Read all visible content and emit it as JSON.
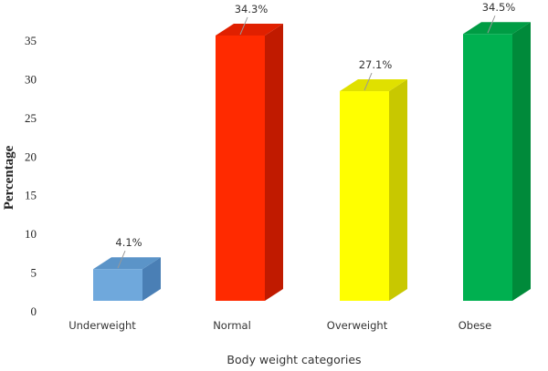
{
  "chart_data": {
    "type": "bar",
    "style": "3d-column",
    "title": "",
    "xlabel": "Body weight categories",
    "ylabel": "Percentage",
    "categories": [
      "Underweight",
      "Normal",
      "Overweight",
      "Obese"
    ],
    "values": [
      4.1,
      34.3,
      27.1,
      34.5
    ],
    "data_labels": [
      "4.1%",
      "34.3%",
      "27.1%",
      "34.5%"
    ],
    "colors": [
      "#6fa8dc",
      "#ff2a00",
      "#ffff00",
      "#00b050"
    ],
    "side_colors": [
      "#4a7fb5",
      "#c01a00",
      "#c8c800",
      "#008a3a"
    ],
    "top_colors": [
      "#5b94c8",
      "#e02000",
      "#e0e000",
      "#009c44"
    ],
    "yticks": [
      0,
      5,
      10,
      15,
      20,
      25,
      30,
      35
    ],
    "ylim": [
      0,
      35
    ],
    "grid": false,
    "legend": null
  }
}
